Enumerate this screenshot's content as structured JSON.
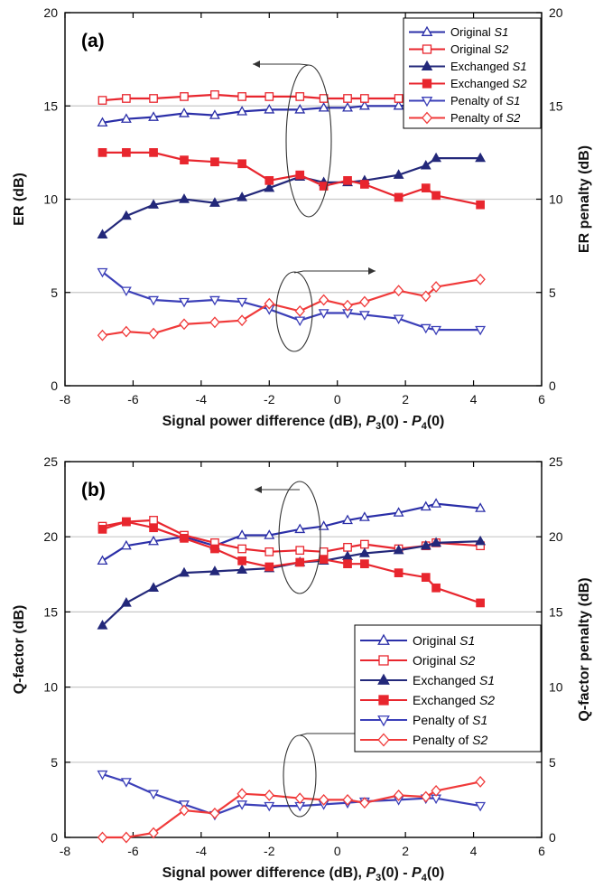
{
  "chart_data": [
    {
      "panel_label": "(a)",
      "type": "line",
      "xlabel_parts": [
        "Signal power difference (dB), ",
        "P",
        "3",
        "(0) - ",
        "P",
        "4",
        "(0)"
      ],
      "ylabel": "ER (dB)",
      "ylabel_right": "ER penalty (dB)",
      "xlim": [
        -8,
        6
      ],
      "ylim": [
        0,
        20
      ],
      "xticks": [
        "-8",
        "-6",
        "-4",
        "-2",
        "0",
        "2",
        "4",
        "6"
      ],
      "yticks": [
        "0",
        "5",
        "10",
        "15",
        "20"
      ],
      "grid": "horizontal",
      "legend_placement": "top-right",
      "series": [
        {
          "name": "Original S1",
          "name_prefix": "Original ",
          "name_italic": "S1",
          "color": "#2b2fa8",
          "marker": "triangle-up",
          "filled": false,
          "x": [
            -6.9,
            -6.2,
            -5.4,
            -4.5,
            -3.6,
            -2.8,
            -2.0,
            -1.1,
            -0.4,
            0.3,
            0.8,
            1.8,
            2.8,
            4.2
          ],
          "y": [
            14.1,
            14.3,
            14.4,
            14.6,
            14.5,
            14.7,
            14.8,
            14.8,
            14.9,
            14.9,
            15.0,
            15.0,
            15.1,
            15.2
          ]
        },
        {
          "name": "Original S2",
          "name_prefix": "Original ",
          "name_italic": "S2",
          "color": "#e8262e",
          "marker": "square",
          "filled": false,
          "x": [
            -6.9,
            -6.2,
            -5.4,
            -4.5,
            -3.6,
            -2.8,
            -2.0,
            -1.1,
            -0.4,
            0.3,
            0.8,
            1.8,
            2.8,
            4.2
          ],
          "y": [
            15.3,
            15.4,
            15.4,
            15.5,
            15.6,
            15.5,
            15.5,
            15.5,
            15.4,
            15.4,
            15.4,
            15.4,
            15.5,
            15.5
          ]
        },
        {
          "name": "Exchanged S1",
          "name_prefix": "Exchanged ",
          "name_italic": "S1",
          "color": "#23287a",
          "marker": "triangle-up",
          "filled": true,
          "x": [
            -6.9,
            -6.2,
            -5.4,
            -4.5,
            -3.6,
            -2.8,
            -2.0,
            -1.1,
            -0.4,
            0.3,
            0.8,
            1.8,
            2.6,
            2.9,
            4.2
          ],
          "y": [
            8.1,
            9.1,
            9.7,
            10.0,
            9.8,
            10.1,
            10.6,
            11.2,
            10.9,
            10.9,
            11.0,
            11.3,
            11.8,
            12.2,
            12.2
          ]
        },
        {
          "name": "Exchanged S2",
          "name_prefix": "Exchanged ",
          "name_italic": "S2",
          "color": "#e8262e",
          "marker": "square",
          "filled": true,
          "x": [
            -6.9,
            -6.2,
            -5.4,
            -4.5,
            -3.6,
            -2.8,
            -2.0,
            -1.1,
            -0.4,
            0.3,
            0.8,
            1.8,
            2.6,
            2.9,
            4.2
          ],
          "y": [
            12.5,
            12.5,
            12.5,
            12.1,
            12.0,
            11.9,
            11.0,
            11.3,
            10.7,
            11.0,
            10.8,
            10.1,
            10.6,
            10.2,
            9.7
          ]
        },
        {
          "name": "Penalty of S1",
          "name_prefix": "Penalty of ",
          "name_italic": "S1",
          "color": "#3b3fb8",
          "marker": "triangle-down",
          "filled": false,
          "x": [
            -6.9,
            -6.2,
            -5.4,
            -4.5,
            -3.6,
            -2.8,
            -2.0,
            -1.1,
            -0.4,
            0.3,
            0.8,
            1.8,
            2.6,
            2.9,
            4.2
          ],
          "y": [
            6.1,
            5.1,
            4.6,
            4.5,
            4.6,
            4.5,
            4.1,
            3.5,
            3.9,
            3.9,
            3.8,
            3.6,
            3.1,
            3.0,
            3.0
          ]
        },
        {
          "name": "Penalty of S2",
          "name_prefix": "Penalty of ",
          "name_italic": "S2",
          "color": "#f03a3a",
          "marker": "diamond",
          "filled": false,
          "x": [
            -6.9,
            -6.2,
            -5.4,
            -4.5,
            -3.6,
            -2.8,
            -2.0,
            -1.1,
            -0.4,
            0.3,
            0.8,
            1.8,
            2.6,
            2.9,
            4.2
          ],
          "y": [
            2.7,
            2.9,
            2.8,
            3.3,
            3.4,
            3.5,
            4.4,
            4.0,
            4.6,
            4.3,
            4.5,
            5.1,
            4.8,
            5.3,
            5.7
          ]
        }
      ]
    },
    {
      "panel_label": "(b)",
      "type": "line",
      "xlabel_parts": [
        "Signal power difference (dB), ",
        "P",
        "3",
        "(0) - ",
        "P",
        "4",
        "(0)"
      ],
      "ylabel": "Q-factor (dB)",
      "ylabel_right": "Q-factor penalty (dB)",
      "xlim": [
        -8,
        6
      ],
      "ylim": [
        0,
        25
      ],
      "xticks": [
        "-8",
        "-6",
        "-4",
        "-2",
        "0",
        "2",
        "4",
        "6"
      ],
      "yticks": [
        "0",
        "5",
        "10",
        "15",
        "20",
        "25"
      ],
      "grid": "horizontal",
      "legend_placement": "bottom-right",
      "series": [
        {
          "name": "Original S1",
          "name_prefix": "Original ",
          "name_italic": "S1",
          "color": "#2b2fa8",
          "marker": "triangle-up",
          "filled": false,
          "x": [
            -6.9,
            -6.2,
            -5.4,
            -4.5,
            -3.6,
            -2.8,
            -2.0,
            -1.1,
            -0.4,
            0.3,
            0.8,
            1.8,
            2.6,
            2.9,
            4.2
          ],
          "y": [
            18.4,
            19.4,
            19.7,
            20.0,
            19.4,
            20.1,
            20.1,
            20.5,
            20.7,
            21.1,
            21.3,
            21.6,
            22.0,
            22.2,
            21.9
          ]
        },
        {
          "name": "Original S2",
          "name_prefix": "Original ",
          "name_italic": "S2",
          "color": "#e8262e",
          "marker": "square",
          "filled": false,
          "x": [
            -6.9,
            -6.2,
            -5.4,
            -4.5,
            -3.6,
            -2.8,
            -2.0,
            -1.1,
            -0.4,
            0.3,
            0.8,
            1.8,
            2.6,
            2.9,
            4.2
          ],
          "y": [
            20.7,
            21.0,
            21.1,
            20.1,
            19.6,
            19.2,
            19.0,
            19.1,
            19.0,
            19.3,
            19.5,
            19.2,
            19.4,
            19.6,
            19.4
          ]
        },
        {
          "name": "Exchanged S1",
          "name_prefix": "Exchanged ",
          "name_italic": "S1",
          "color": "#23287a",
          "marker": "triangle-up",
          "filled": true,
          "x": [
            -6.9,
            -6.2,
            -5.4,
            -4.5,
            -3.6,
            -2.8,
            -2.0,
            -1.1,
            -0.4,
            0.3,
            0.8,
            1.8,
            2.6,
            2.9,
            4.2
          ],
          "y": [
            14.1,
            15.6,
            16.6,
            17.6,
            17.7,
            17.8,
            17.9,
            18.3,
            18.4,
            18.7,
            18.9,
            19.1,
            19.4,
            19.6,
            19.7
          ]
        },
        {
          "name": "Exchanged S2",
          "name_prefix": "Exchanged ",
          "name_italic": "S2",
          "color": "#e8262e",
          "marker": "square",
          "filled": true,
          "x": [
            -6.9,
            -6.2,
            -5.4,
            -4.5,
            -3.6,
            -2.8,
            -2.0,
            -1.1,
            -0.4,
            0.3,
            0.8,
            1.8,
            2.6,
            2.9,
            4.2
          ],
          "y": [
            20.5,
            21.0,
            20.6,
            19.9,
            19.2,
            18.4,
            18.0,
            18.3,
            18.5,
            18.2,
            18.2,
            17.6,
            17.3,
            16.6,
            15.6
          ]
        },
        {
          "name": "Penalty of S1",
          "name_prefix": "Penalty of ",
          "name_italic": "S1",
          "color": "#3b3fb8",
          "marker": "triangle-down",
          "filled": false,
          "x": [
            -6.9,
            -6.2,
            -5.4,
            -4.5,
            -3.6,
            -2.8,
            -2.0,
            -1.1,
            -0.4,
            0.3,
            0.8,
            1.8,
            2.6,
            2.9,
            4.2
          ],
          "y": [
            4.2,
            3.7,
            2.9,
            2.2,
            1.5,
            2.2,
            2.1,
            2.1,
            2.2,
            2.3,
            2.4,
            2.5,
            2.6,
            2.6,
            2.1
          ]
        },
        {
          "name": "Penalty of S2",
          "name_prefix": "Penalty of ",
          "name_italic": "S2",
          "color": "#f03a3a",
          "marker": "diamond",
          "filled": false,
          "x": [
            -6.9,
            -6.2,
            -5.4,
            -4.5,
            -3.6,
            -2.8,
            -2.0,
            -1.1,
            -0.4,
            0.3,
            0.8,
            1.8,
            2.6,
            2.9,
            4.2
          ],
          "y": [
            0.0,
            0.0,
            0.3,
            1.8,
            1.6,
            2.9,
            2.8,
            2.6,
            2.5,
            2.5,
            2.3,
            2.8,
            2.7,
            3.1,
            3.7
          ]
        }
      ]
    }
  ]
}
